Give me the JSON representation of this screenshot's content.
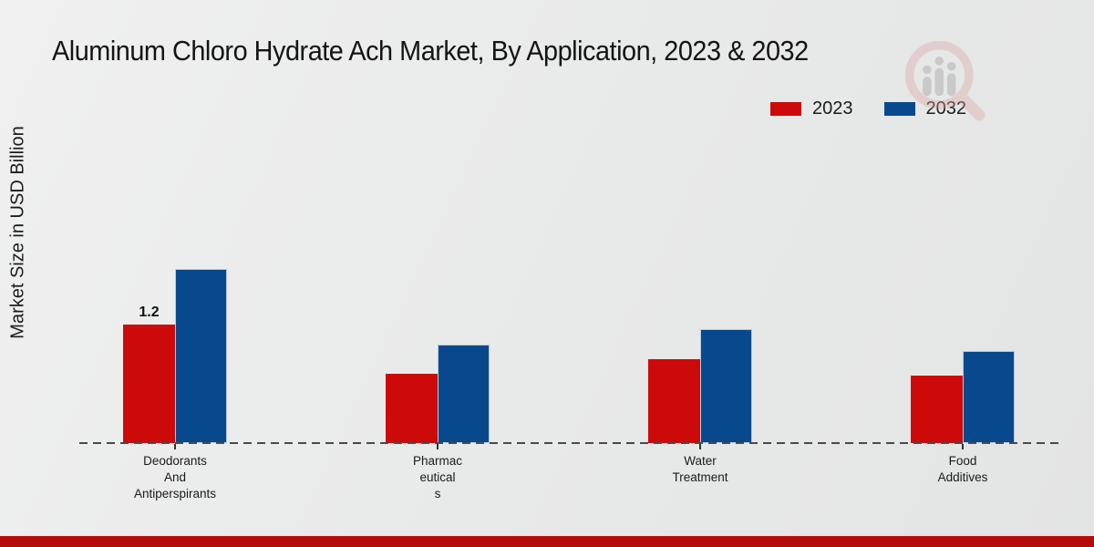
{
  "page": {
    "title": "Aluminum Chloro Hydrate Ach Market, By Application, 2023 & 2032"
  },
  "chart_data": {
    "type": "bar",
    "title": "Aluminum Chloro Hydrate Ach Market, By Application, 2023 & 2032",
    "xlabel": "",
    "ylabel": "Market Size in USD Billion",
    "categories": [
      "Deodorants And Antiperspirants",
      "Pharmaceuticals",
      "Water Treatment",
      "Food Additives"
    ],
    "categories_display": [
      "Deodorants\nAnd\nAntiperspirants",
      "Pharmac\neutical\ns",
      "Water\nTreatment",
      "Food\nAdditives"
    ],
    "series": [
      {
        "name": "2023",
        "color": "#cc0a0a",
        "values": [
          1.2,
          0.7,
          0.85,
          0.68
        ]
      },
      {
        "name": "2032",
        "color": "#07498c",
        "values": [
          1.76,
          1.0,
          1.15,
          0.93
        ]
      }
    ],
    "value_labels": [
      {
        "series": "2023",
        "category_index": 0,
        "text": "1.2"
      }
    ],
    "ylim": [
      0,
      2.2
    ],
    "grid": false,
    "legend_position": "top-right",
    "baseline_style": "dashed"
  },
  "colors": {
    "series_2023": "#cc0a0a",
    "series_2032": "#07498c",
    "footer_bar": "#b30d0b",
    "baseline": "#4a4a4a"
  },
  "watermark": {
    "icon": "mrfr-magnifier-logo"
  }
}
